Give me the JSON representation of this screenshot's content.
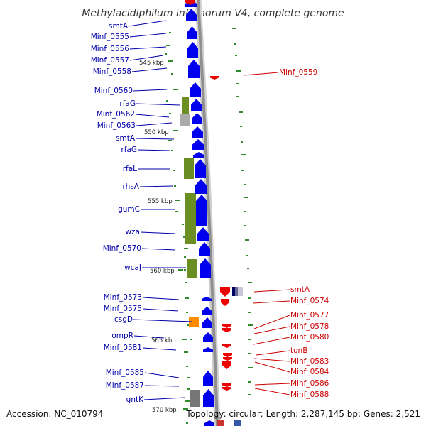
{
  "title": "Methylacidiphilum infernorum V4, complete genome",
  "footer": {
    "accession": "Accession: NC_010794",
    "summary": "Topology: circular; Length: 2,287,145 bp; Genes: 2,521"
  },
  "colors": {
    "forward_cds": "#0000ee",
    "reverse_cds": "#ee0000",
    "left_label": "#0000aa",
    "right_label": "#cc0000",
    "cog_olive": "#6b8e23",
    "cog_orange": "#ff8c00",
    "cog_gray": "#888888",
    "gc_skew": "#2e8b2e",
    "backbone": "#999999"
  },
  "kbp_ticks": [
    "545 kbp",
    "550 kbp",
    "555 kbp",
    "560 kbp",
    "565 kbp",
    "570 kbp"
  ],
  "left_labels": [
    "smtA",
    "Minf_0555",
    "Minf_0556",
    "Minf_0557",
    "Minf_0558",
    "Minf_0560",
    "rfaG",
    "Minf_0562",
    "Minf_0563",
    "smtA",
    "rfaG",
    "rfaL",
    "rhsA",
    "gumC",
    "wza",
    "Minf_0570",
    "wcaJ",
    "Minf_0573",
    "Minf_0575",
    "csgD",
    "ompR",
    "Minf_0581",
    "Minf_0585",
    "Minf_0587",
    "gntK"
  ],
  "right_labels": [
    "Minf_0559",
    "smtA",
    "Minf_0574",
    "Minf_0577",
    "Minf_0578",
    "Minf_0580",
    "tonB",
    "Minf_0583",
    "Minf_0584",
    "Minf_0586",
    "Minf_0588"
  ]
}
